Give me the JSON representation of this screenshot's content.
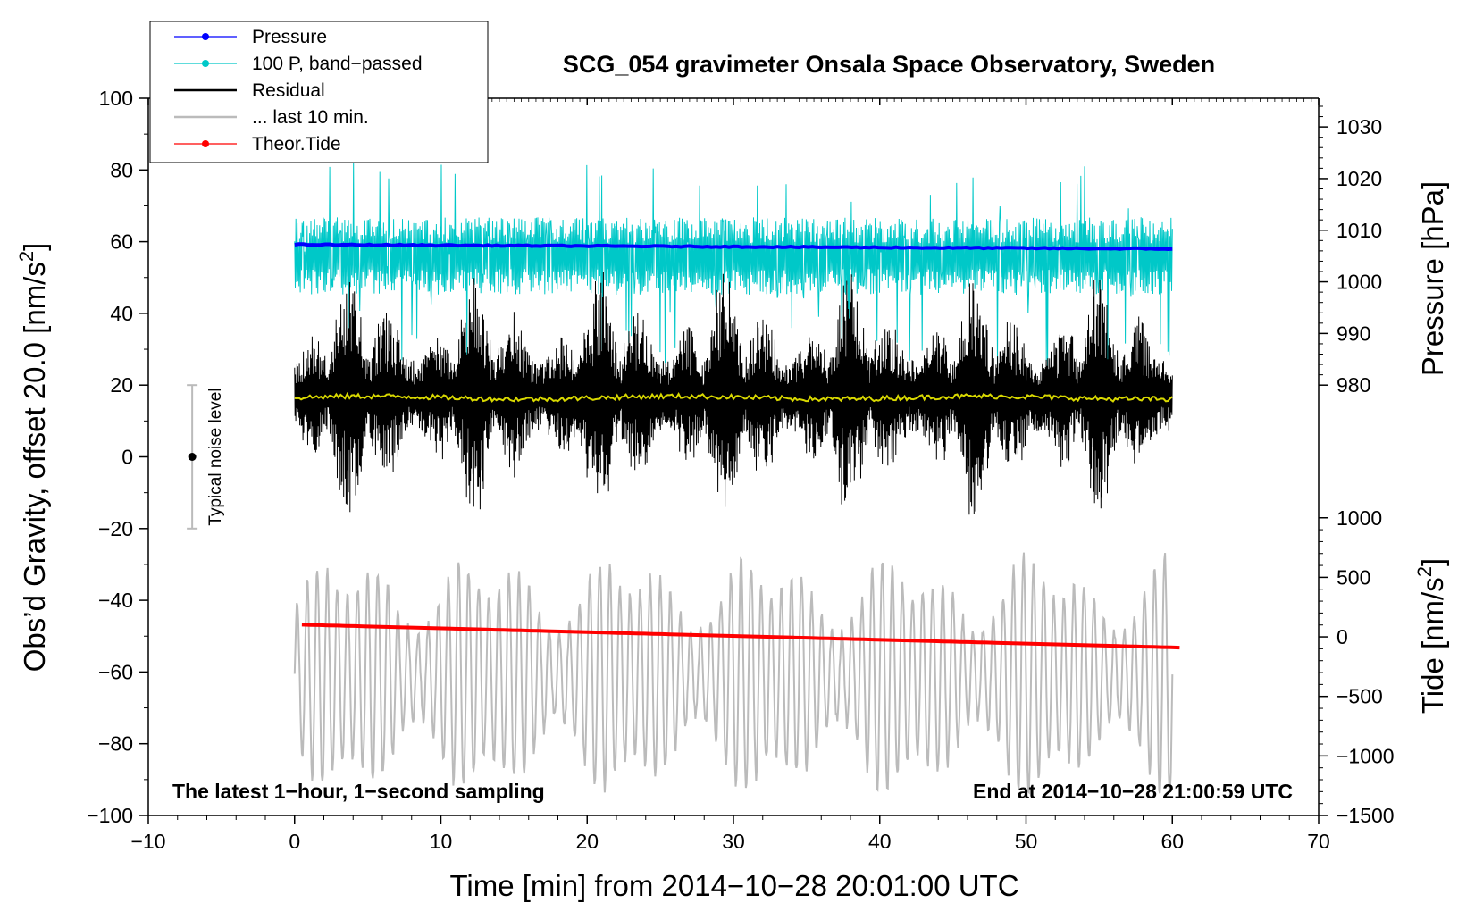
{
  "chart_data": {
    "type": "line",
    "title": "SCG_054 gravimeter Onsala Space Observatory, Sweden",
    "xlabel": "Time [min] from 2014−10−28 20:01:00 UTC",
    "ylabel_left_prefix": "Obs’d Gravity, offset 20.0 [nm/s",
    "ylabel_left_sup": "2",
    "ylabel_left_suffix": "]",
    "ylabel_right_pressure": "Pressure [hPa]",
    "ylabel_right_tide_prefix": "Tide [nm/s",
    "ylabel_right_tide_sup": "2",
    "ylabel_right_tide_suffix": "]",
    "xlim": [
      -10,
      70
    ],
    "ylim": [
      -100,
      100
    ],
    "x_ticks": [
      -10,
      0,
      10,
      20,
      30,
      40,
      50,
      60,
      70
    ],
    "x_tick_labels": [
      "−10",
      "0",
      "10",
      "20",
      "30",
      "40",
      "50",
      "60",
      "70"
    ],
    "y_ticks": [
      -100,
      -80,
      -60,
      -40,
      -20,
      0,
      20,
      40,
      60,
      80,
      100
    ],
    "y_tick_labels": [
      "−100",
      "−80",
      "−60",
      "−40",
      "−20",
      "0",
      "20",
      "40",
      "60",
      "80",
      "100"
    ],
    "pressure_axis": {
      "ticks": [
        980,
        990,
        1000,
        1010,
        1020,
        1030
      ],
      "tick_labels": [
        "980",
        "990",
        "1000",
        "1010",
        "1020",
        "1030"
      ],
      "gravity_at_980": 20,
      "gravity_at_1030": 92
    },
    "tide_axis": {
      "ticks": [
        -1500,
        -1000,
        -500,
        0,
        500,
        1000
      ],
      "tick_labels": [
        "−1500",
        "−1000",
        "−500",
        "0",
        "500",
        "1000"
      ],
      "gravity_at_minus1500": -100,
      "gravity_at_1000": -17
    },
    "legend": [
      {
        "label": "Pressure",
        "color": "#0000ff",
        "marker": true
      },
      {
        "label": "100 P, band−passed",
        "color": "#00c8c8",
        "marker": true
      },
      {
        "label": "Residual",
        "color": "#000000",
        "marker": false
      },
      {
        "label": "... last 10 min.",
        "color": "#bbbbbb",
        "marker": false
      },
      {
        "label": "Theor.Tide",
        "color": "#ff0000",
        "marker": true
      }
    ],
    "series": [
      {
        "name": "Pressure",
        "color": "#0000ff",
        "x_range": [
          0,
          60
        ],
        "y_start": 59.2,
        "y_end": 58.0
      },
      {
        "name": "100 P, band−passed",
        "color": "#00c8c8",
        "x_range": [
          0,
          60
        ],
        "center": 56,
        "amplitude": 9
      },
      {
        "name": "Residual",
        "color": "#000000",
        "x_range": [
          0,
          60
        ],
        "center": 17,
        "amplitude_min": 10,
        "amplitude_max": 38,
        "min": -27,
        "max": 57
      },
      {
        "name": "Residual mean",
        "color": "#d8d800",
        "x_range": [
          0,
          60
        ],
        "center": 16.5
      },
      {
        "name": "... last 10 min.",
        "color": "#bbbbbb",
        "x_range": [
          0,
          60
        ],
        "center": -61,
        "amplitude_min": 8,
        "amplitude_max": 37
      },
      {
        "name": "Theor.Tide",
        "color": "#ff0000",
        "x_range": [
          0.5,
          60.5
        ],
        "y_start": -46.8,
        "y_end": -53.2
      }
    ],
    "noise_marker": {
      "x": -7,
      "y": 0,
      "low": -20,
      "high": 20,
      "label": "Typical noise level"
    },
    "annotation_left": "The latest 1−hour, 1−second sampling",
    "annotation_right": "End at 2014−10−28 21:00:59 UTC"
  }
}
